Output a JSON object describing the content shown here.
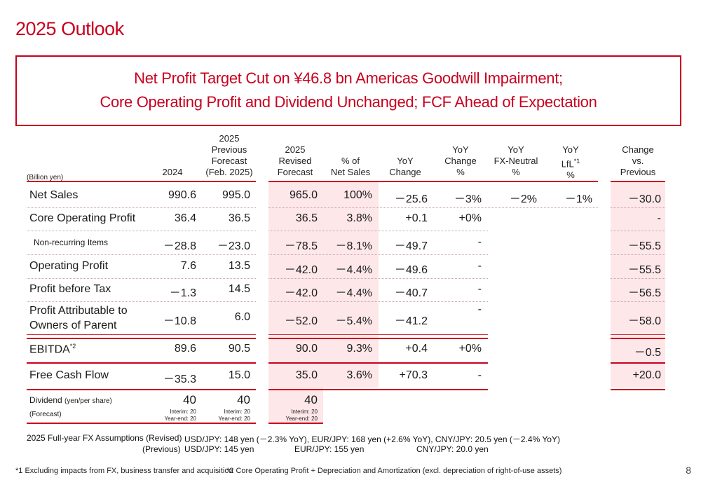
{
  "page": {
    "title": "2025 Outlook",
    "headline": [
      "Net Profit Target Cut on ¥46.8 bn Americas Goodwill Impairment;",
      "Core Operating Profit and Dividend Unchanged; FCF Ahead of Expectation"
    ],
    "page_number": "8"
  },
  "table": {
    "unit_label": "(Billion yen)",
    "columns": [
      {
        "key": "y2024",
        "label": "2024"
      },
      {
        "key": "prev",
        "label": "2025\nPrevious\nForecast\n(Feb. 2025)"
      },
      {
        "key": "rev",
        "label": "2025\nRevised\nForecast"
      },
      {
        "key": "pct_sales",
        "label": "% of\nNet Sales"
      },
      {
        "key": "yoy",
        "label": "YoY\nChange"
      },
      {
        "key": "yoy_pct",
        "label": "YoY\nChange\n%"
      },
      {
        "key": "yoy_fx",
        "label": "YoY\nFX-Neutral\n%"
      },
      {
        "key": "yoy_lfl",
        "label": "YoY\nLfL*1\n%"
      },
      {
        "key": "vs_prev",
        "label": "Change\nvs.\nPrevious"
      }
    ],
    "rows": [
      {
        "label": "Net Sales",
        "y2024": "990.6",
        "prev": "995.0",
        "rev": "965.0",
        "pct_sales": "100%",
        "yoy": "－25.6",
        "yoy_pct": "－3%",
        "yoy_fx": "－2%",
        "yoy_lfl": "－1%",
        "vs_prev": "－30.0"
      },
      {
        "label": "Core Operating Profit",
        "y2024": "36.4",
        "prev": "36.5",
        "rev": "36.5",
        "pct_sales": "3.8%",
        "yoy": "+0.1",
        "yoy_pct": "+0%",
        "yoy_fx": "",
        "yoy_lfl": "",
        "vs_prev": "-"
      },
      {
        "label": "Non-recurring Items",
        "y2024": "－28.8",
        "prev": "－23.0",
        "rev": "－78.5",
        "pct_sales": "－8.1%",
        "yoy": "－49.7",
        "yoy_pct": "-",
        "yoy_fx": "",
        "yoy_lfl": "",
        "vs_prev": "－55.5"
      },
      {
        "label": "Operating Profit",
        "y2024": "7.6",
        "prev": "13.5",
        "rev": "－42.0",
        "pct_sales": "－4.4%",
        "yoy": "－49.6",
        "yoy_pct": "-",
        "yoy_fx": "",
        "yoy_lfl": "",
        "vs_prev": "－55.5"
      },
      {
        "label": "Profit before Tax",
        "y2024": "－1.3",
        "prev": "14.5",
        "rev": "－42.0",
        "pct_sales": "－4.4%",
        "yoy": "－40.7",
        "yoy_pct": "-",
        "yoy_fx": "",
        "yoy_lfl": "",
        "vs_prev": "－56.5"
      },
      {
        "label": "Profit Attributable to\nOwners of Parent",
        "y2024": "－10.8",
        "prev": "6.0",
        "rev": "－52.0",
        "pct_sales": "－5.4%",
        "yoy": "－41.2",
        "yoy_pct": "-",
        "yoy_fx": "",
        "yoy_lfl": "",
        "vs_prev": "－58.0"
      },
      {
        "label": "EBITDA",
        "label_sup": "*2",
        "y2024": "89.6",
        "prev": "90.5",
        "rev": "90.0",
        "pct_sales": "9.3%",
        "yoy": "+0.4",
        "yoy_pct": "+0%",
        "yoy_fx": "",
        "yoy_lfl": "",
        "vs_prev": "－0.5"
      },
      {
        "label": "Free Cash Flow",
        "y2024": "－35.3",
        "prev": "15.0",
        "rev": "35.0",
        "pct_sales": "3.6%",
        "yoy": "+70.3",
        "yoy_pct": "-",
        "yoy_fx": "",
        "yoy_lfl": "",
        "vs_prev": "+20.0"
      }
    ],
    "dividend": {
      "label": "Dividend",
      "label_unit": "(yen/per share)",
      "label_note": "(Forecast)",
      "y2024": {
        "value": "40",
        "interim": "Interim: 20",
        "year_end": "Year-end: 20"
      },
      "prev": {
        "value": "40",
        "interim": "Interim: 20",
        "year_end": "Year-end: 20"
      },
      "rev": {
        "value": "40",
        "interim": "Interim: 20",
        "year_end": "Year-end: 20"
      }
    }
  },
  "fx_assumptions": {
    "label": "2025 Full-year FX Assumptions",
    "revised_label": "(Revised)",
    "previous_label": "(Previous)",
    "revised": {
      "usd": "USD/JPY: 148 yen (－2.3% YoY), ",
      "eur": "EUR/JPY: 168 yen (+2.6% YoY), ",
      "cny": "CNY/JPY: 20.5 yen (－2.4% YoY)"
    },
    "previous": {
      "usd": "USD/JPY: 145 yen",
      "eur": "EUR/JPY: 155 yen",
      "cny": "CNY/JPY: 20.0 yen"
    }
  },
  "footnotes": [
    "*1 Excluding impacts from FX, business transfer and acquisition",
    "*2 Core Operating Profit + Depreciation and Amortization (excl. depreciation of right-of-use assets)"
  ],
  "colors": {
    "accent": "#c8001e",
    "highlight_fill": "#fde7e9"
  }
}
